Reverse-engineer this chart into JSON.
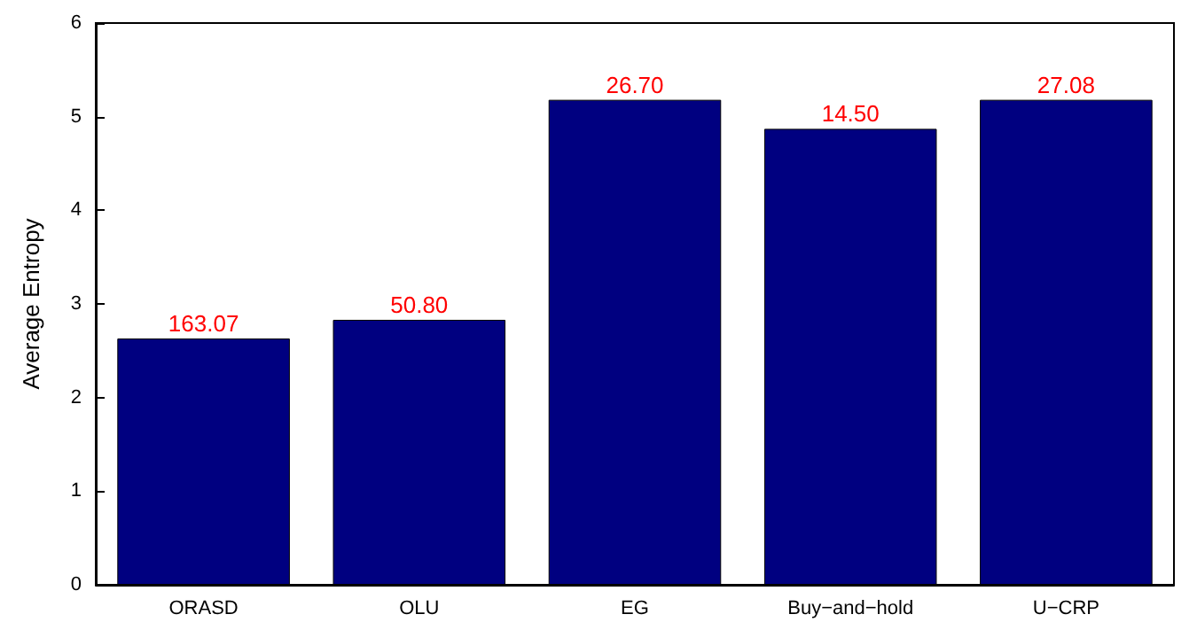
{
  "chart_data": {
    "type": "bar",
    "ylabel": "Average Entropy",
    "categories": [
      "ORASD",
      "OLU",
      "EG",
      "Buy−and−hold",
      "U−CRP"
    ],
    "values": [
      2.63,
      2.83,
      5.18,
      4.87,
      5.18
    ],
    "annotations": [
      {
        "text": "163.07",
        "x": "ORASD",
        "y": 2.63
      },
      {
        "text": "50.80",
        "x": "OLU",
        "y": 2.83
      },
      {
        "text": "26.70",
        "x": "EG",
        "y": 5.18
      },
      {
        "text": "14.50",
        "x": "Buy−and−hold",
        "y": 4.87
      },
      {
        "text": "27.08",
        "x": "U−CRP",
        "y": 5.18
      }
    ],
    "color": "#000080",
    "ylim": [
      0,
      6
    ],
    "yticks": [
      0,
      1,
      2,
      3,
      4,
      5,
      6
    ],
    "grid": false
  }
}
